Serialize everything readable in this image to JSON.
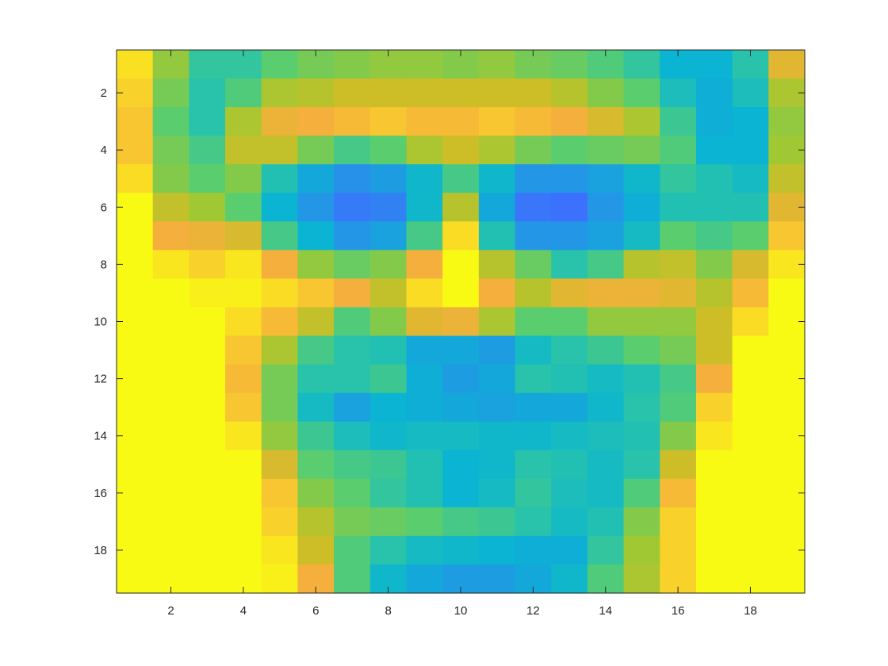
{
  "chart_data": {
    "type": "heatmap",
    "title": "",
    "xlabel": "",
    "ylabel": "",
    "rows": 19,
    "cols": 19,
    "xlim": [
      0.5,
      19.5
    ],
    "ylim": [
      0.5,
      19.5
    ],
    "y_direction": "reversed",
    "colormap": "parula",
    "color_range": [
      0,
      1
    ],
    "x_ticks": [
      2,
      4,
      6,
      8,
      10,
      12,
      14,
      16,
      18
    ],
    "y_ticks": [
      2,
      4,
      6,
      8,
      10,
      12,
      14,
      16,
      18
    ],
    "x_tick_labels": [
      "2",
      "4",
      "6",
      "8",
      "10",
      "12",
      "14",
      "16",
      "18"
    ],
    "y_tick_labels": [
      "2",
      "4",
      "6",
      "8",
      "10",
      "12",
      "14",
      "16",
      "18"
    ],
    "grid": false,
    "values": [
      [
        0.95,
        0.68,
        0.52,
        0.52,
        0.6,
        0.64,
        0.66,
        0.68,
        0.68,
        0.66,
        0.68,
        0.64,
        0.62,
        0.58,
        0.52,
        0.4,
        0.4,
        0.5,
        0.82
      ],
      [
        0.92,
        0.64,
        0.5,
        0.58,
        0.72,
        0.74,
        0.78,
        0.78,
        0.78,
        0.78,
        0.78,
        0.78,
        0.74,
        0.66,
        0.6,
        0.46,
        0.38,
        0.46,
        0.72
      ],
      [
        0.9,
        0.6,
        0.5,
        0.72,
        0.84,
        0.86,
        0.88,
        0.9,
        0.88,
        0.88,
        0.9,
        0.88,
        0.86,
        0.8,
        0.72,
        0.54,
        0.38,
        0.4,
        0.68
      ],
      [
        0.9,
        0.64,
        0.56,
        0.76,
        0.76,
        0.64,
        0.56,
        0.6,
        0.72,
        0.78,
        0.72,
        0.64,
        0.6,
        0.62,
        0.64,
        0.58,
        0.4,
        0.4,
        0.7
      ],
      [
        0.94,
        0.66,
        0.6,
        0.66,
        0.48,
        0.36,
        0.28,
        0.32,
        0.42,
        0.56,
        0.42,
        0.3,
        0.3,
        0.34,
        0.42,
        0.52,
        0.48,
        0.44,
        0.76
      ],
      [
        1.0,
        0.76,
        0.7,
        0.6,
        0.4,
        0.3,
        0.2,
        0.22,
        0.42,
        0.74,
        0.36,
        0.18,
        0.16,
        0.3,
        0.38,
        0.48,
        0.48,
        0.48,
        0.82
      ],
      [
        1.0,
        0.86,
        0.84,
        0.8,
        0.56,
        0.4,
        0.3,
        0.34,
        0.56,
        0.94,
        0.48,
        0.3,
        0.3,
        0.34,
        0.44,
        0.6,
        0.56,
        0.6,
        0.9
      ],
      [
        1.0,
        0.96,
        0.92,
        0.96,
        0.86,
        0.68,
        0.62,
        0.66,
        0.86,
        1.0,
        0.74,
        0.62,
        0.5,
        0.56,
        0.74,
        0.76,
        0.66,
        0.8,
        0.96
      ],
      [
        1.0,
        1.0,
        0.98,
        0.98,
        0.94,
        0.9,
        0.86,
        0.76,
        0.94,
        1.0,
        0.86,
        0.74,
        0.82,
        0.84,
        0.84,
        0.82,
        0.74,
        0.88,
        1.0
      ],
      [
        1.0,
        1.0,
        1.0,
        0.94,
        0.88,
        0.76,
        0.58,
        0.66,
        0.82,
        0.84,
        0.72,
        0.6,
        0.6,
        0.68,
        0.68,
        0.68,
        0.78,
        0.94,
        1.0
      ],
      [
        1.0,
        1.0,
        1.0,
        0.9,
        0.72,
        0.56,
        0.5,
        0.48,
        0.36,
        0.36,
        0.32,
        0.44,
        0.5,
        0.54,
        0.6,
        0.64,
        0.78,
        1.0,
        1.0
      ],
      [
        1.0,
        1.0,
        1.0,
        0.88,
        0.64,
        0.5,
        0.5,
        0.54,
        0.38,
        0.32,
        0.36,
        0.5,
        0.48,
        0.44,
        0.48,
        0.56,
        0.86,
        1.0,
        1.0
      ],
      [
        1.0,
        1.0,
        1.0,
        0.9,
        0.64,
        0.44,
        0.34,
        0.4,
        0.38,
        0.36,
        0.34,
        0.36,
        0.36,
        0.42,
        0.5,
        0.58,
        0.92,
        1.0,
        1.0
      ],
      [
        1.0,
        1.0,
        1.0,
        0.96,
        0.68,
        0.54,
        0.46,
        0.42,
        0.44,
        0.44,
        0.42,
        0.42,
        0.44,
        0.46,
        0.48,
        0.66,
        0.96,
        1.0,
        1.0
      ],
      [
        1.0,
        1.0,
        1.0,
        1.0,
        0.8,
        0.6,
        0.56,
        0.54,
        0.48,
        0.4,
        0.42,
        0.5,
        0.48,
        0.44,
        0.5,
        0.78,
        1.0,
        1.0,
        1.0
      ],
      [
        1.0,
        1.0,
        1.0,
        1.0,
        0.9,
        0.66,
        0.6,
        0.52,
        0.48,
        0.4,
        0.44,
        0.52,
        0.46,
        0.44,
        0.58,
        0.88,
        1.0,
        1.0,
        1.0
      ],
      [
        1.0,
        1.0,
        1.0,
        1.0,
        0.92,
        0.74,
        0.64,
        0.62,
        0.6,
        0.56,
        0.54,
        0.5,
        0.44,
        0.48,
        0.66,
        0.92,
        1.0,
        1.0,
        1.0
      ],
      [
        1.0,
        1.0,
        1.0,
        1.0,
        0.96,
        0.78,
        0.58,
        0.5,
        0.44,
        0.42,
        0.4,
        0.38,
        0.38,
        0.52,
        0.7,
        0.92,
        1.0,
        1.0,
        1.0
      ],
      [
        1.0,
        1.0,
        1.0,
        1.0,
        0.98,
        0.86,
        0.58,
        0.42,
        0.36,
        0.32,
        0.32,
        0.36,
        0.42,
        0.58,
        0.72,
        0.92,
        1.0,
        1.0,
        1.0
      ]
    ]
  }
}
